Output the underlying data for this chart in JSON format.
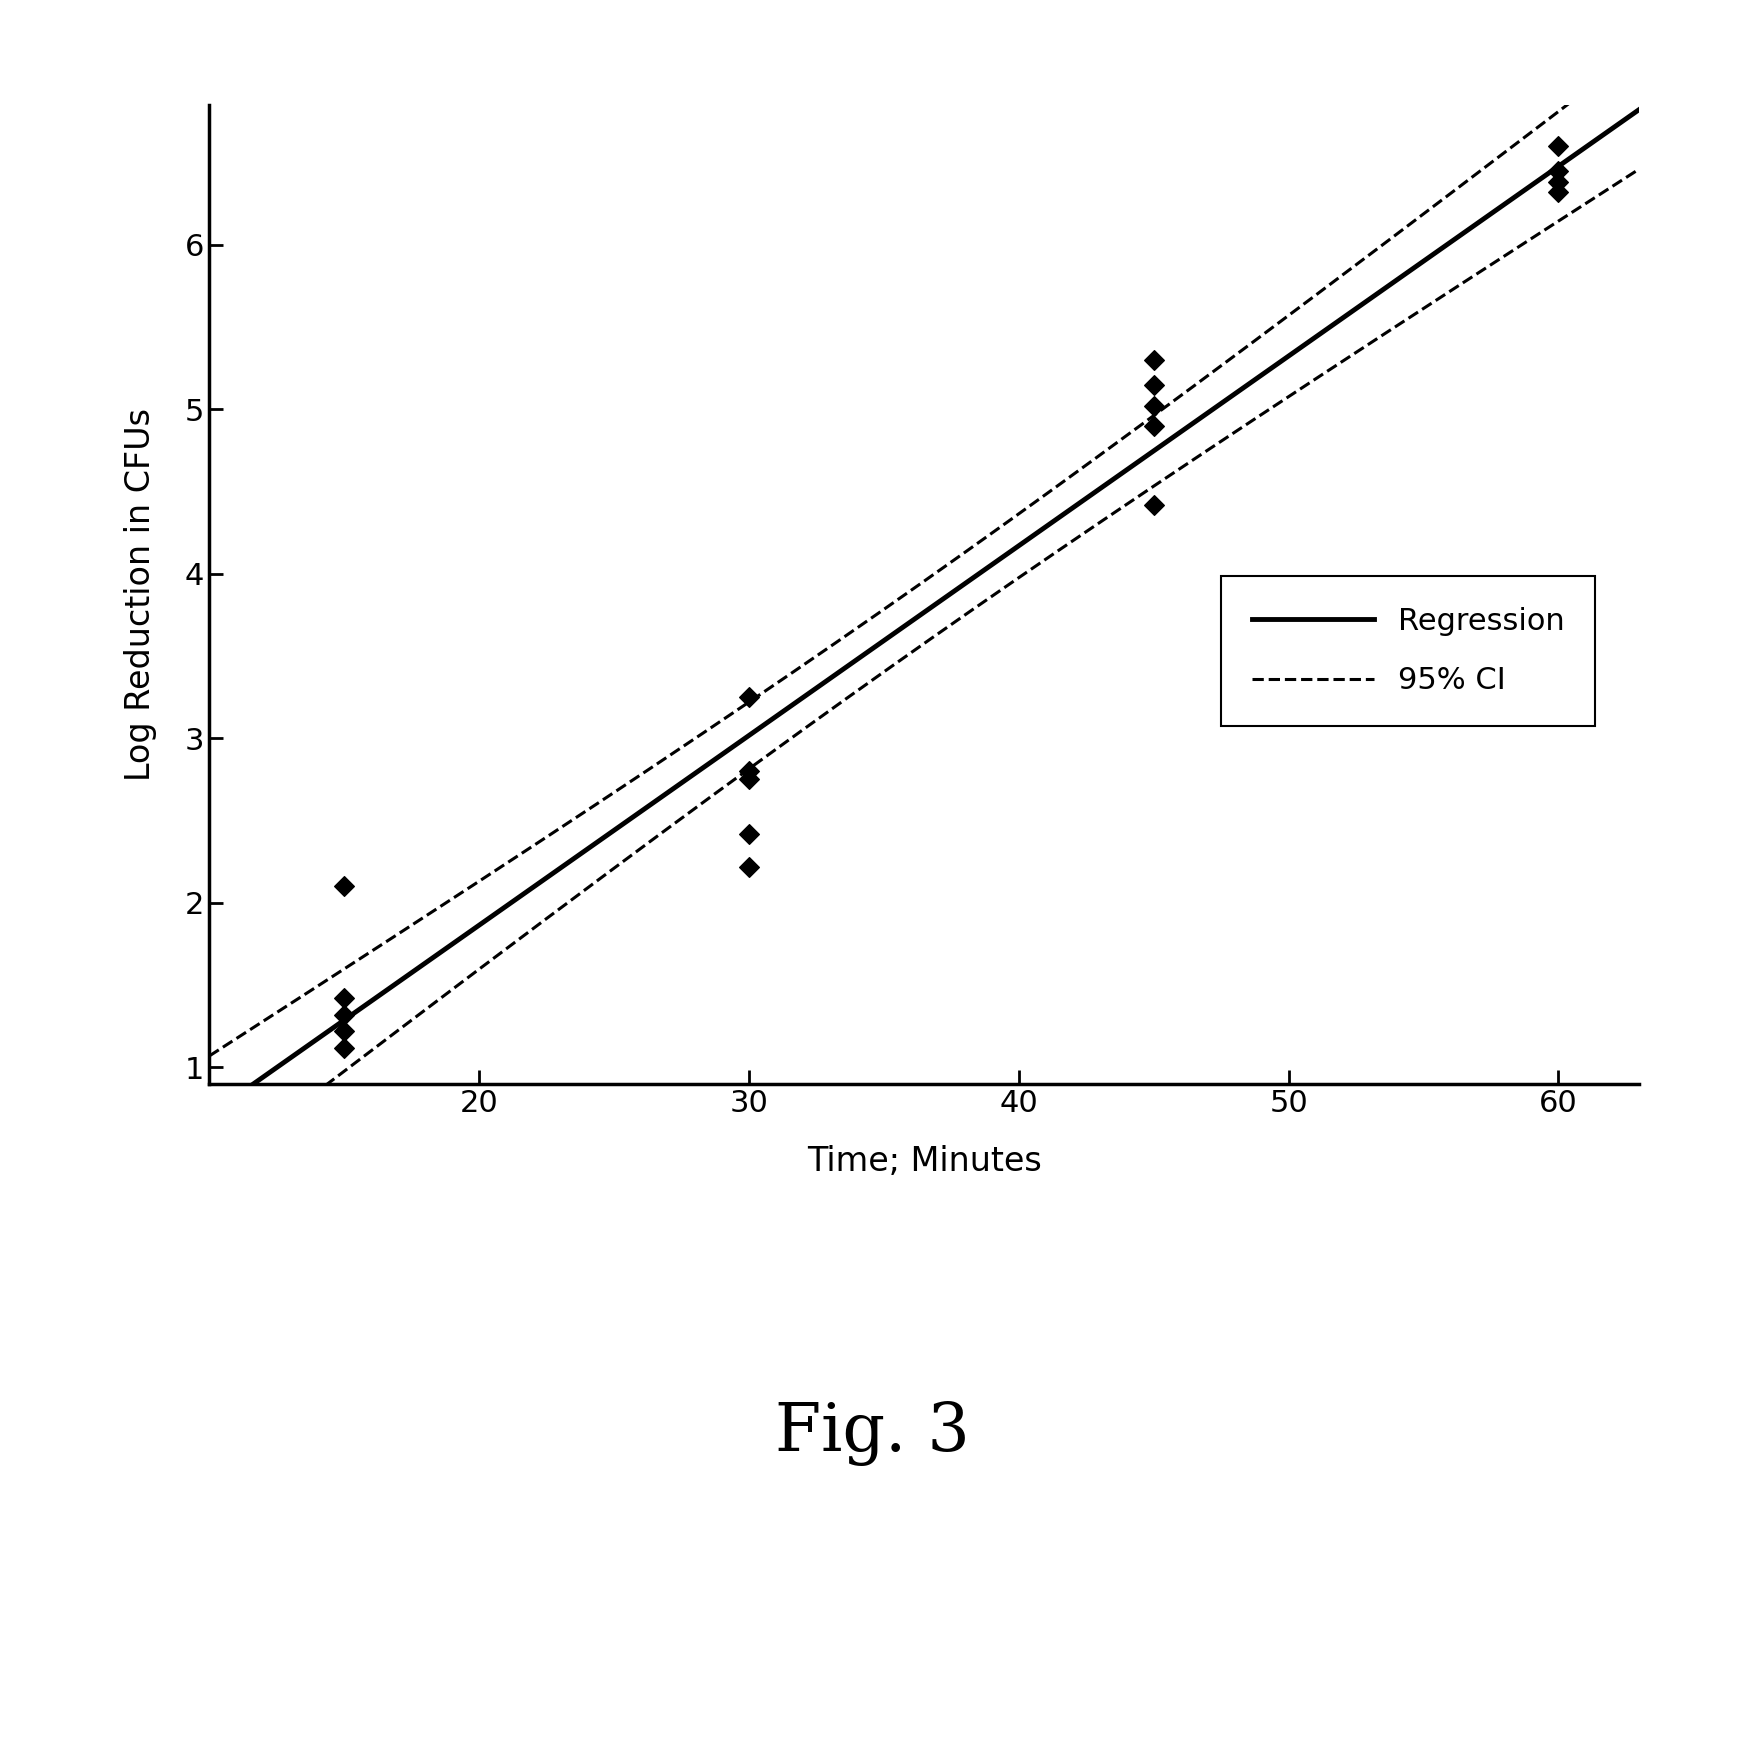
{
  "scatter_points": [
    [
      15,
      2.1
    ],
    [
      15,
      1.42
    ],
    [
      15,
      1.32
    ],
    [
      15,
      1.22
    ],
    [
      15,
      1.12
    ],
    [
      30,
      3.25
    ],
    [
      30,
      2.8
    ],
    [
      30,
      2.75
    ],
    [
      30,
      2.42
    ],
    [
      30,
      2.22
    ],
    [
      45,
      5.3
    ],
    [
      45,
      5.15
    ],
    [
      45,
      5.02
    ],
    [
      45,
      4.9
    ],
    [
      45,
      4.42
    ],
    [
      60,
      6.6
    ],
    [
      60,
      6.45
    ],
    [
      60,
      6.38
    ],
    [
      60,
      6.32
    ]
  ],
  "xlabel": "Time; Minutes",
  "ylabel": "Log Reduction in CFUs",
  "fig_label": "Fig. 3",
  "xlim": [
    10,
    63
  ],
  "ylim": [
    0.9,
    6.85
  ],
  "xticks": [
    20,
    30,
    40,
    50,
    60
  ],
  "yticks": [
    1,
    2,
    3,
    4,
    5,
    6
  ],
  "background_color": "#ffffff",
  "line_color": "#000000",
  "ci_color": "#000000",
  "scatter_color": "#000000",
  "legend_regression": "Regression",
  "legend_ci": "95% CI",
  "t_value": 2.11
}
